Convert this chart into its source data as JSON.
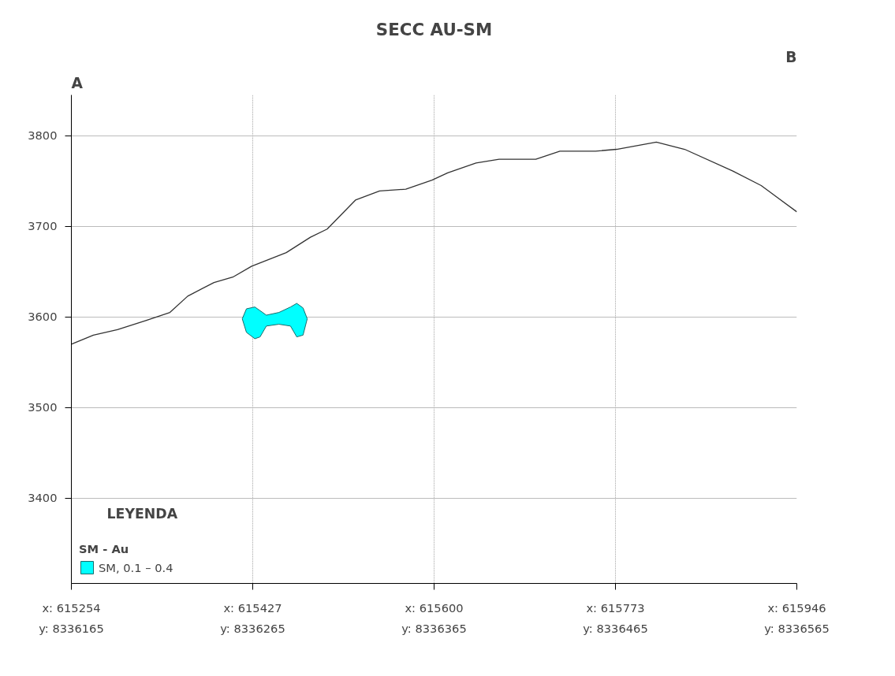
{
  "chart_data": {
    "type": "line",
    "title": "SECC AU-SM",
    "legend_title": "SM - Au",
    "annotations": [
      "A",
      "B",
      "LEYENDA"
    ],
    "xlim": [
      615254,
      615946
    ],
    "xticks": [
      {
        "value": 615254,
        "label": "x: 615254"
      },
      {
        "value": 615427,
        "label": "x: 615427"
      },
      {
        "value": 615600,
        "label": "x: 615600"
      },
      {
        "value": 615773,
        "label": "x: 615773"
      },
      {
        "value": 615946,
        "label": "x: 615946"
      }
    ],
    "x2lim": [
      8336165,
      8336565
    ],
    "x2ticks": [
      {
        "value": 8336165,
        "label": "y: 8336165"
      },
      {
        "value": 8336265,
        "label": "y: 8336265"
      },
      {
        "value": 8336365,
        "label": "y: 8336365"
      },
      {
        "value": 8336465,
        "label": "y: 8336465"
      },
      {
        "value": 8336565,
        "label": "y: 8336565"
      }
    ],
    "ylim": [
      3306,
      3845
    ],
    "yticks": [
      3400,
      3500,
      3600,
      3700,
      3800
    ],
    "grid": true,
    "legend": "bottom left",
    "series": [
      {
        "color": "#333333",
        "x": [
          615254,
          615275,
          615298,
          615325,
          615348,
          615365,
          615390,
          615408,
          615426,
          615459,
          615482,
          615498,
          615525,
          615548,
          615573,
          615598,
          615613,
          615640,
          615662,
          615697,
          615720,
          615754,
          615774,
          615812,
          615839,
          615885,
          615912,
          615946
        ],
        "values": [
          3570,
          3580,
          3586,
          3596,
          3605,
          3623,
          3638,
          3644,
          3656,
          3671,
          3688,
          3697,
          3729,
          3739,
          3741,
          3751,
          3759,
          3770,
          3774,
          3774,
          3783,
          3783,
          3785,
          3793,
          3785,
          3761,
          3745,
          3716
        ]
      },
      {
        "type": "area",
        "name": "SM, 0.1 – 0.4",
        "color": "#00ffff",
        "x": [
          615417,
          615421,
          615429,
          615434,
          615440,
          615452,
          615463,
          615469,
          615475,
          615479,
          615475,
          615469,
          615463,
          615452,
          615440,
          615434,
          615429,
          615421
        ],
        "values": [
          3598,
          3609,
          3611,
          3607,
          3602,
          3605,
          3611,
          3615,
          3610,
          3598,
          3580,
          3578,
          3590,
          3592,
          3590,
          3578,
          3576,
          3583
        ]
      }
    ]
  }
}
